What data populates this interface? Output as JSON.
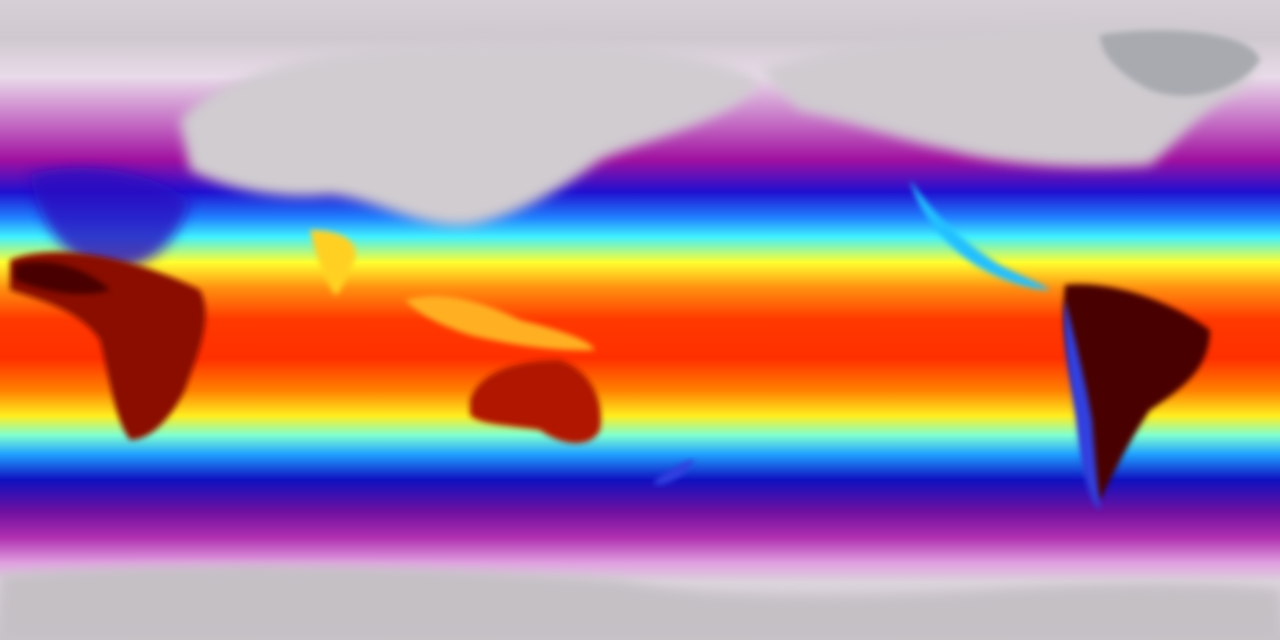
{
  "map": {
    "colors": {
      "polar": "#c8c4c8",
      "cold": "#a010a0",
      "cool": "#2010d0",
      "mild": "#40f0ff",
      "warm": "#ffff30",
      "hot": "#ff3000",
      "hottest": "#5a0000"
    }
  }
}
